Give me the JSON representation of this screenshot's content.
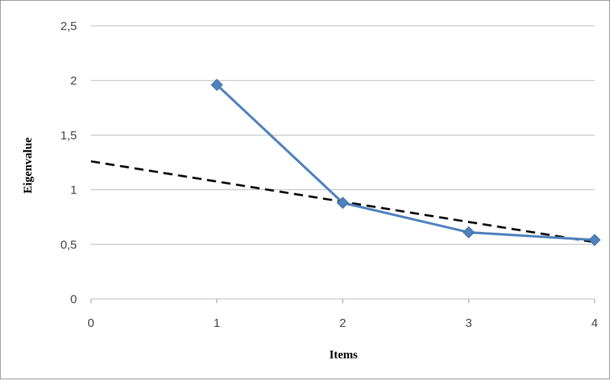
{
  "chart_data": {
    "type": "line",
    "title": "",
    "xlabel": "Items",
    "ylabel": "Eigenvalue",
    "xlim": [
      0,
      4
    ],
    "ylim": [
      0,
      2.5
    ],
    "x_ticks": [
      "0",
      "1",
      "2",
      "3",
      "4"
    ],
    "y_ticks": [
      "0",
      "0,5",
      "1",
      "1,5",
      "2",
      "2,5"
    ],
    "grid": true,
    "legend": "none",
    "series": [
      {
        "x": [
          1,
          2,
          3,
          4
        ],
        "values": [
          1.96,
          0.88,
          0.61,
          0.54
        ],
        "color": "#4f81bd",
        "style": "solid",
        "marker": "diamond"
      }
    ],
    "reference_line": {
      "x": [
        0,
        4
      ],
      "values": [
        1.26,
        0.52
      ],
      "color": "#000000",
      "style": "dashed"
    }
  }
}
